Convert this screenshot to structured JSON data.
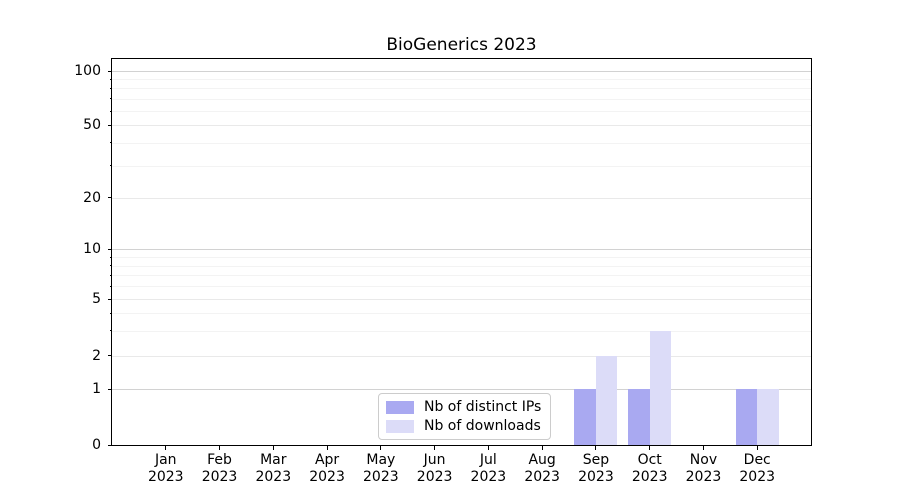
{
  "chart_data": {
    "type": "bar",
    "title": "BioGenerics 2023",
    "categories": [
      "Jan",
      "Feb",
      "Mar",
      "Apr",
      "May",
      "Jun",
      "Jul",
      "Aug",
      "Sep",
      "Oct",
      "Nov",
      "Dec"
    ],
    "category_year": "2023",
    "series": [
      {
        "name": "Nb of distinct IPs",
        "color": "#a9a9f1",
        "values": [
          0,
          0,
          0,
          0,
          0,
          0,
          0,
          0,
          1,
          1,
          0,
          1
        ]
      },
      {
        "name": "Nb of downloads",
        "color": "#dcdcf8",
        "values": [
          0,
          0,
          0,
          0,
          0,
          0,
          0,
          0,
          2,
          3,
          0,
          1
        ]
      }
    ],
    "yscale": "symlog",
    "ylim": [
      0,
      100
    ],
    "yticks": [
      0,
      1,
      2,
      5,
      10,
      20,
      50,
      100
    ],
    "ytick_labels": [
      "0",
      "1",
      "2",
      "5",
      "10",
      "20",
      "50",
      "100"
    ],
    "minor_yticks": [
      3,
      4,
      6,
      7,
      8,
      9,
      30,
      40,
      60,
      70,
      80,
      90
    ],
    "grid": "horizontal, major and minor",
    "legend_position": "inside, lower center-left",
    "colors": {
      "major_grid": "#d2d2d2",
      "labeled_minor_grid": "#e9e9e9",
      "minor_grid": "#f3f3f3",
      "spine": "#000000",
      "legend_border": "#cccccc"
    }
  }
}
